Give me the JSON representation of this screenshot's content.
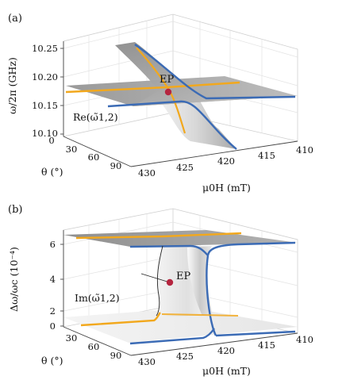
{
  "chart_data": [
    {
      "type": "surface3d",
      "panel_label": "(a)",
      "zlabel": "ω/2π (GHz)",
      "xlabel": "μ0H (mT)",
      "ylabel": "θ (°)",
      "z_ticks": [
        "10.25",
        "10.20",
        "10.15",
        "10.10"
      ],
      "x_ticks": [
        "430",
        "425",
        "420",
        "415",
        "410"
      ],
      "y_ticks": [
        "0",
        "30",
        "60",
        "90"
      ],
      "zlim": [
        10.1,
        10.25
      ],
      "xlim": [
        430,
        410
      ],
      "ylim": [
        0,
        90
      ],
      "surface_label": "Re(ω̃1,2)",
      "point_label": "EP",
      "point_color": "#b5253f",
      "line_colors": {
        "blue": "#3b6bb5",
        "orange": "#f2a81d"
      }
    },
    {
      "type": "surface3d",
      "panel_label": "(b)",
      "zlabel": "Δω/ωc (10⁻⁴)",
      "xlabel": "μ0H (mT)",
      "ylabel": "θ (°)",
      "z_ticks": [
        "6",
        "4",
        "2",
        "0"
      ],
      "x_ticks": [
        "430",
        "425",
        "420",
        "415",
        "410"
      ],
      "y_ticks": [
        "0",
        "30",
        "60",
        "90"
      ],
      "zlim": [
        0,
        7
      ],
      "xlim": [
        430,
        410
      ],
      "ylim": [
        0,
        90
      ],
      "surface_label": "Im(ω̃1,2)",
      "point_label": "EP",
      "point_color": "#b5253f",
      "line_colors": {
        "blue": "#3b6bb5",
        "orange": "#f2a81d"
      }
    }
  ]
}
